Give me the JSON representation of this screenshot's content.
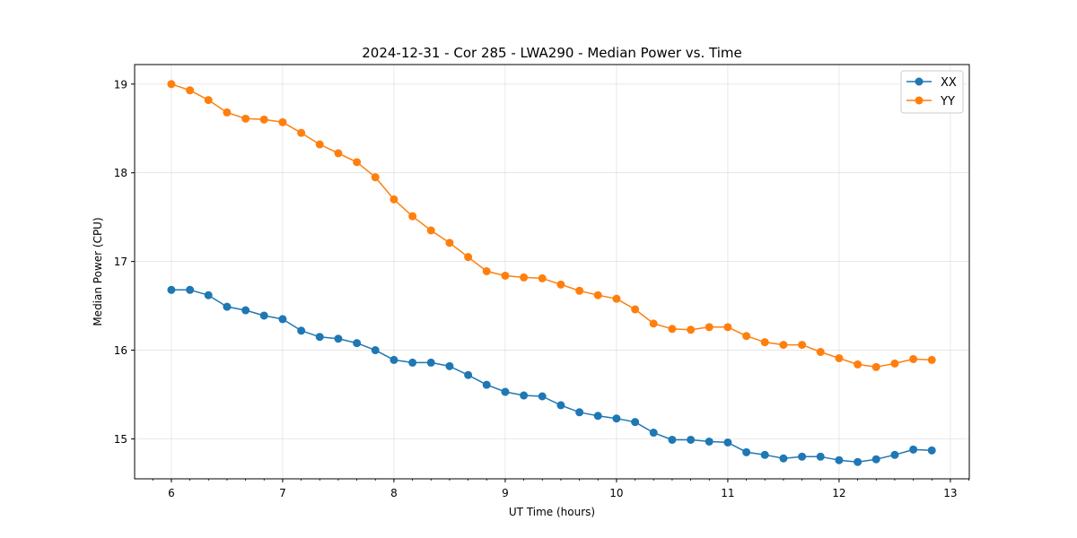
{
  "chart_data": {
    "type": "line",
    "title": "2024-12-31 - Cor 285 - LWA290 - Median Power vs. Time",
    "xlabel": "UT Time (hours)",
    "ylabel": "Median Power (CPU)",
    "xlim": [
      5.67,
      13.17
    ],
    "ylim": [
      14.55,
      19.22
    ],
    "x_ticks": [
      6,
      7,
      8,
      9,
      10,
      11,
      12,
      13
    ],
    "x_tick_labels": [
      "6",
      "7",
      "8",
      "9",
      "10",
      "11",
      "12",
      "13"
    ],
    "y_ticks": [
      15,
      16,
      17,
      18,
      19
    ],
    "y_tick_labels": [
      "15",
      "16",
      "17",
      "18",
      "19"
    ],
    "grid": true,
    "legend_position": "top-right",
    "x": [
      6.0,
      6.167,
      6.333,
      6.5,
      6.667,
      6.833,
      7.0,
      7.167,
      7.333,
      7.5,
      7.667,
      7.833,
      8.0,
      8.167,
      8.333,
      8.5,
      8.667,
      8.833,
      9.0,
      9.167,
      9.333,
      9.5,
      9.667,
      9.833,
      10.0,
      10.167,
      10.333,
      10.5,
      10.667,
      10.833,
      11.0,
      11.167,
      11.333,
      11.5,
      11.667,
      11.833,
      12.0,
      12.167,
      12.333,
      12.5,
      12.667,
      12.833
    ],
    "series": [
      {
        "name": "XX",
        "color": "#1f77b4",
        "values": [
          16.68,
          16.68,
          16.62,
          16.49,
          16.45,
          16.39,
          16.35,
          16.22,
          16.15,
          16.13,
          16.08,
          16.0,
          15.89,
          15.86,
          15.86,
          15.82,
          15.72,
          15.61,
          15.53,
          15.49,
          15.48,
          15.38,
          15.3,
          15.26,
          15.23,
          15.19,
          15.07,
          14.99,
          14.99,
          14.97,
          14.96,
          14.85,
          14.82,
          14.78,
          14.8,
          14.8,
          14.76,
          14.74,
          14.77,
          14.82,
          14.88,
          14.87
        ]
      },
      {
        "name": "YY",
        "color": "#ff7f0e",
        "values": [
          19.0,
          18.93,
          18.82,
          18.68,
          18.61,
          18.6,
          18.57,
          18.45,
          18.32,
          18.22,
          18.12,
          17.95,
          17.7,
          17.51,
          17.35,
          17.21,
          17.05,
          16.89,
          16.84,
          16.82,
          16.81,
          16.74,
          16.67,
          16.62,
          16.58,
          16.46,
          16.3,
          16.24,
          16.23,
          16.26,
          16.26,
          16.16,
          16.09,
          16.06,
          16.06,
          15.98,
          15.91,
          15.84,
          15.81,
          15.85,
          15.9,
          15.89
        ]
      }
    ]
  }
}
